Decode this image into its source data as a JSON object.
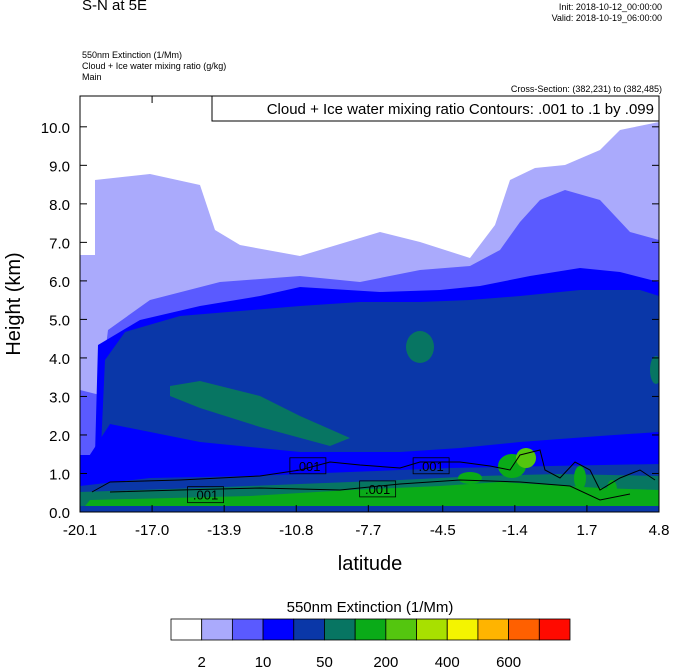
{
  "header": {
    "title": "S-N at 5E",
    "init": "Init: 2018-10-12_00:00:00",
    "valid": "Valid: 2018-10-19_06:00:00",
    "fields": [
      "550nm Extinction   (1/Mm)",
      "Cloud + Ice water mixing ratio   (g/kg)",
      "Main"
    ],
    "cross_section": "Cross-Section: (382,231) to (382,485)"
  },
  "chart_data": {
    "type": "heatmap",
    "subtype": "filled-contour cross-section",
    "title": "S-N at 5E",
    "xlabel": "latitude",
    "ylabel": "Height (km)",
    "xlim": [
      -20.1,
      4.8
    ],
    "ylim": [
      0,
      10.8
    ],
    "x_ticks": [
      "-20.1",
      "-17.0",
      "-13.9",
      "-10.8",
      "-7.7",
      "-4.5",
      "-1.4",
      "1.7",
      "4.8"
    ],
    "x_tick_values": [
      -20.1,
      -17.0,
      -13.9,
      -10.8,
      -7.7,
      -4.5,
      -1.4,
      1.7,
      4.8
    ],
    "y_ticks": [
      "0.0",
      "1.0",
      "2.0",
      "3.0",
      "4.0",
      "5.0",
      "6.0",
      "7.0",
      "8.0",
      "9.0",
      "10.0"
    ],
    "y_tick_values": [
      0,
      1,
      2,
      3,
      4,
      5,
      6,
      7,
      8,
      9,
      10
    ],
    "contour_annotation": "Cloud + Ice water mixing ratio Contours: .001 to .1 by .099",
    "contour_labels": [
      {
        "text": ".001",
        "lat": -10.3,
        "height": 1.2
      },
      {
        "text": ".001",
        "lat": -5.0,
        "height": 1.2
      },
      {
        "text": ".001",
        "lat": -7.3,
        "height": 0.6
      },
      {
        "text": ".001",
        "lat": -14.7,
        "height": 0.45
      }
    ],
    "colorbar": {
      "title": "550nm Extinction  (1/Mm)",
      "colors": [
        "#ffffff",
        "#aaaafc",
        "#5a5aff",
        "#0000ff",
        "#0a37a8",
        "#077562",
        "#0aab18",
        "#54c60f",
        "#a8e000",
        "#f4f400",
        "#ffb400",
        "#ff6000",
        "#ff0a00"
      ],
      "labels": [
        "2",
        "10",
        "50",
        "200",
        "400",
        "600"
      ]
    }
  }
}
